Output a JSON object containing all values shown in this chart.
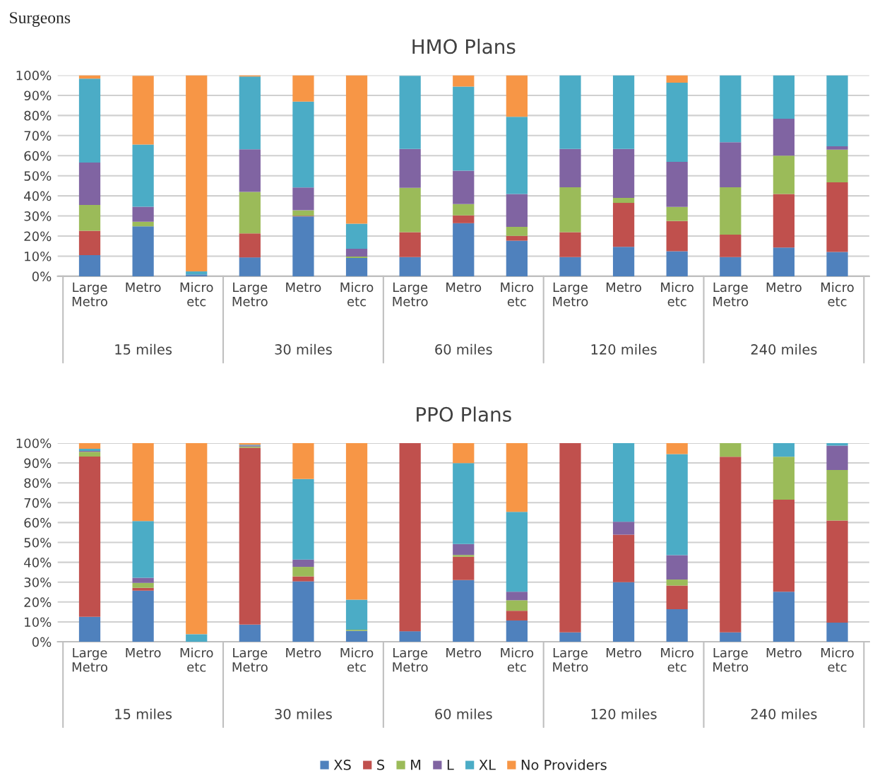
{
  "chart_data": [
    {
      "type": "other",
      "title": "Surgeons"
    },
    {
      "type": "bar",
      "title": "HMO Plans",
      "stacked": true,
      "grid": "y",
      "legend": false,
      "categories": [
        "Large Metro",
        "Metro",
        "Micro etc",
        "Large Metro",
        "Metro",
        "Micro etc",
        "Large Metro",
        "Metro",
        "Micro etc",
        "Large Metro",
        "Metro",
        "Micro etc",
        "Large Metro",
        "Metro",
        "Micro etc"
      ],
      "annotations": [
        "15 miles",
        "30 miles",
        "60 miles",
        "120 miles",
        "240 miles"
      ],
      "ylim": [
        0,
        100
      ],
      "yticks": [
        {
          "value": 0,
          "label": "0%"
        },
        {
          "value": 10,
          "label": "10%"
        },
        {
          "value": 20,
          "label": "20%"
        },
        {
          "value": 30,
          "label": "30%"
        },
        {
          "value": 40,
          "label": "40%"
        },
        {
          "value": 50,
          "label": "50%"
        },
        {
          "value": 60,
          "label": "60%"
        },
        {
          "value": 70,
          "label": "70%"
        },
        {
          "value": 80,
          "label": "80%"
        },
        {
          "value": 90,
          "label": "90%"
        },
        {
          "value": 100,
          "label": "100%"
        }
      ],
      "series": [
        {
          "color": "#4f81bd",
          "values": [
            10.5,
            24.8,
            0.9,
            9.4,
            29.8,
            9.1,
            9.5,
            26.4,
            17.7,
            9.5,
            14.6,
            12.4,
            9.5,
            14.3,
            12.1
          ]
        },
        {
          "color": "#c0504d",
          "values": [
            12.1,
            null,
            0,
            11.9,
            0.3,
            0,
            12.4,
            3.9,
            2.4,
            12.4,
            21.9,
            15.1,
            11.2,
            26.6,
            34.6
          ]
        },
        {
          "color": "#9bbb59",
          "values": [
            12.9,
            2.3,
            0,
            20.7,
            2.7,
            0.7,
            22.1,
            5.6,
            4.5,
            22.4,
            2.5,
            7.0,
            23.6,
            19.1,
            16.3
          ]
        },
        {
          "color": "#8064a2",
          "values": [
            21.1,
            7.5,
            0,
            21.2,
            11.4,
            3.9,
            19.3,
            16.6,
            16.3,
            19.0,
            24.3,
            22.4,
            22.4,
            18.4,
            1.7
          ]
        },
        {
          "color": "#4bacc6",
          "values": [
            41.7,
            30.9,
            1.5,
            36.2,
            42.7,
            12.5,
            36.4,
            41.9,
            38.4,
            36.7,
            36.7,
            39.4,
            33.3,
            21.6,
            35.3
          ]
        },
        {
          "color": "#f79646",
          "values": [
            1.7,
            34.2,
            97.6,
            0.6,
            13.1,
            73.8,
            null,
            5.6,
            20.7,
            0,
            0,
            3.7,
            0,
            0,
            0
          ]
        }
      ]
    },
    {
      "type": "bar",
      "title": "PPO Plans",
      "stacked": true,
      "grid": "y",
      "legend": "bottom",
      "categories": [
        "Large Metro",
        "Metro",
        "Micro etc",
        "Large Metro",
        "Metro",
        "Micro etc",
        "Large Metro",
        "Metro",
        "Micro etc",
        "Large Metro",
        "Metro",
        "Micro etc",
        "Large Metro",
        "Metro",
        "Micro etc"
      ],
      "annotations": [
        "15 miles",
        "30 miles",
        "60 miles",
        "120 miles",
        "240 miles"
      ],
      "ylim": [
        0,
        100
      ],
      "yticks": [
        {
          "value": 0,
          "label": "0%"
        },
        {
          "value": 10,
          "label": "10%"
        },
        {
          "value": 20,
          "label": "20%"
        },
        {
          "value": 30,
          "label": "30%"
        },
        {
          "value": 40,
          "label": "40%"
        },
        {
          "value": 50,
          "label": "50%"
        },
        {
          "value": 60,
          "label": "60%"
        },
        {
          "value": 70,
          "label": "70%"
        },
        {
          "value": 80,
          "label": "80%"
        },
        {
          "value": 90,
          "label": "90%"
        },
        {
          "value": 100,
          "label": "100%"
        }
      ],
      "series": [
        {
          "name": "XS",
          "color": "#4f81bd",
          "values": [
            12.6,
            25.7,
            0,
            8.6,
            30.4,
            5.5,
            5.3,
            31.1,
            10.7,
            4.7,
            30.0,
            16.4,
            4.7,
            25.2,
            9.6
          ]
        },
        {
          "name": "S",
          "color": "#c0504d",
          "values": [
            80.6,
            1.4,
            0,
            89.1,
            2.5,
            0,
            94.7,
            11.7,
            4.9,
            95.3,
            23.9,
            11.9,
            88.4,
            46.3,
            51.4
          ]
        },
        {
          "name": "M",
          "color": "#9bbb59",
          "values": [
            2.4,
            2.5,
            0,
            0.6,
            4.8,
            0.6,
            0,
            0.9,
            5.3,
            0,
            0,
            3.0,
            6.9,
            21.6,
            25.5
          ]
        },
        {
          "name": "L",
          "color": "#8064a2",
          "values": [
            0.5,
            2.6,
            0,
            0.5,
            3.7,
            0,
            0,
            5.5,
            4.3,
            0,
            6.5,
            12.3,
            0,
            0,
            12.2
          ]
        },
        {
          "name": "XL",
          "color": "#4bacc6",
          "values": [
            1.0,
            28.6,
            3.8,
            0.4,
            40.5,
            15.1,
            0,
            40.7,
            40.2,
            0,
            39.6,
            50.9,
            0,
            6.9,
            1.3
          ]
        },
        {
          "name": "No Providers",
          "color": "#f79646",
          "values": [
            2.9,
            39.2,
            96.2,
            0.8,
            18.1,
            78.8,
            0,
            10.1,
            34.6,
            0,
            0,
            5.5,
            0,
            0,
            0
          ]
        }
      ]
    }
  ]
}
